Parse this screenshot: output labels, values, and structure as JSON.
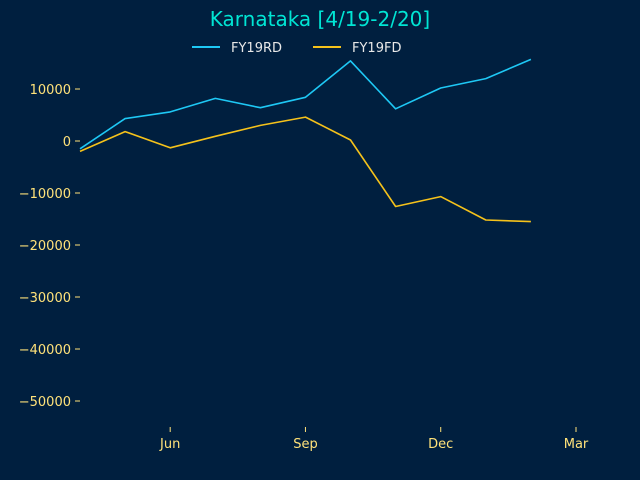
{
  "chart_data": {
    "type": "line",
    "title": "Karnataka [4/19-2/20]",
    "xlabel": "",
    "ylabel": "",
    "x": [
      "2019-04",
      "2019-05",
      "2019-06",
      "2019-07",
      "2019-08",
      "2019-09",
      "2019-10",
      "2019-11",
      "2019-12",
      "2020-01",
      "2020-02"
    ],
    "x_ticks": [
      {
        "label": "Jun",
        "value": "2019-06"
      },
      {
        "label": "Sep",
        "value": "2019-09"
      },
      {
        "label": "Dec",
        "value": "2019-12"
      },
      {
        "label": "Mar",
        "value": "2020-03"
      }
    ],
    "y_ticks": [
      10000,
      0,
      -10000,
      -20000,
      -30000,
      -40000,
      -50000
    ],
    "y_tick_labels": [
      "10000",
      "0",
      "−10000",
      "−20000",
      "−30000",
      "−40000",
      "−50000"
    ],
    "xlim": [
      "2019-04",
      "2020-03"
    ],
    "ylim": [
      -55000,
      17000
    ],
    "grid": false,
    "legend_position": "top-center",
    "series": [
      {
        "name": "FY19RD",
        "color": "#1ec8f5",
        "values": [
          -1500,
          4300,
          5600,
          8200,
          6400,
          8400,
          15400,
          6200,
          10200,
          12000,
          15700
        ]
      },
      {
        "name": "FY19FD",
        "color": "#f5c21b",
        "values": [
          -2000,
          1800,
          -1300,
          900,
          3000,
          4600,
          200,
          -12600,
          -10700,
          -15200,
          -15500
        ]
      }
    ]
  }
}
